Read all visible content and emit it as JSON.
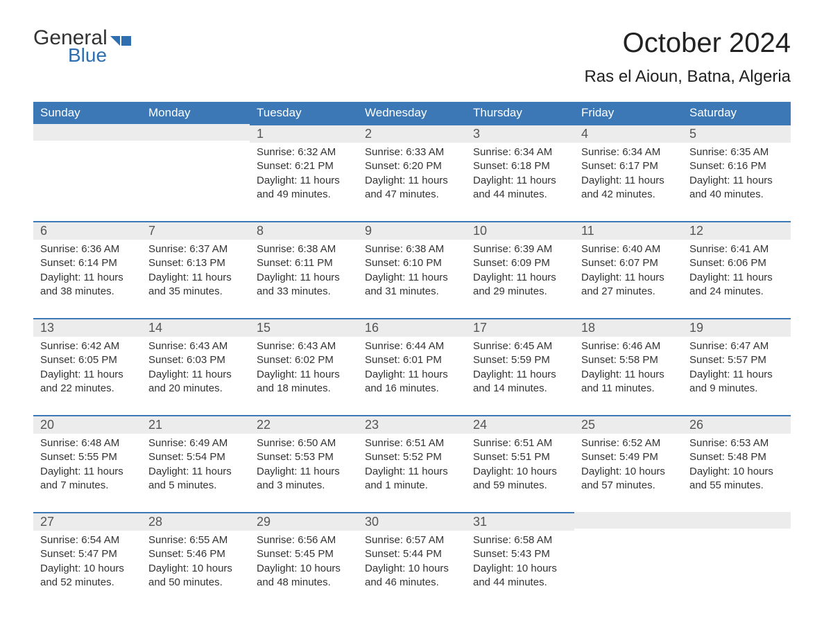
{
  "logo": {
    "word1": "General",
    "word2": "Blue",
    "color1": "#333333",
    "color2": "#2f6fb0"
  },
  "title": "October 2024",
  "location": "Ras el Aioun, Batna, Algeria",
  "colors": {
    "header_bg": "#3b78b5",
    "header_text": "#ffffff",
    "daynum_bg": "#ececec",
    "day_border_top": "#3b78b5",
    "body_text": "#333333",
    "page_bg": "#ffffff"
  },
  "typography": {
    "title_fontsize": 40,
    "location_fontsize": 24,
    "header_cell_fontsize": 17,
    "daynum_fontsize": 18,
    "body_fontsize": 15
  },
  "layout": {
    "columns": 7,
    "rows": 5,
    "first_day_column_index": 2
  },
  "day_headers": [
    "Sunday",
    "Monday",
    "Tuesday",
    "Wednesday",
    "Thursday",
    "Friday",
    "Saturday"
  ],
  "days": [
    {
      "n": 1,
      "sunrise": "6:32 AM",
      "sunset": "6:21 PM",
      "daylight": "11 hours and 49 minutes."
    },
    {
      "n": 2,
      "sunrise": "6:33 AM",
      "sunset": "6:20 PM",
      "daylight": "11 hours and 47 minutes."
    },
    {
      "n": 3,
      "sunrise": "6:34 AM",
      "sunset": "6:18 PM",
      "daylight": "11 hours and 44 minutes."
    },
    {
      "n": 4,
      "sunrise": "6:34 AM",
      "sunset": "6:17 PM",
      "daylight": "11 hours and 42 minutes."
    },
    {
      "n": 5,
      "sunrise": "6:35 AM",
      "sunset": "6:16 PM",
      "daylight": "11 hours and 40 minutes."
    },
    {
      "n": 6,
      "sunrise": "6:36 AM",
      "sunset": "6:14 PM",
      "daylight": "11 hours and 38 minutes."
    },
    {
      "n": 7,
      "sunrise": "6:37 AM",
      "sunset": "6:13 PM",
      "daylight": "11 hours and 35 minutes."
    },
    {
      "n": 8,
      "sunrise": "6:38 AM",
      "sunset": "6:11 PM",
      "daylight": "11 hours and 33 minutes."
    },
    {
      "n": 9,
      "sunrise": "6:38 AM",
      "sunset": "6:10 PM",
      "daylight": "11 hours and 31 minutes."
    },
    {
      "n": 10,
      "sunrise": "6:39 AM",
      "sunset": "6:09 PM",
      "daylight": "11 hours and 29 minutes."
    },
    {
      "n": 11,
      "sunrise": "6:40 AM",
      "sunset": "6:07 PM",
      "daylight": "11 hours and 27 minutes."
    },
    {
      "n": 12,
      "sunrise": "6:41 AM",
      "sunset": "6:06 PM",
      "daylight": "11 hours and 24 minutes."
    },
    {
      "n": 13,
      "sunrise": "6:42 AM",
      "sunset": "6:05 PM",
      "daylight": "11 hours and 22 minutes."
    },
    {
      "n": 14,
      "sunrise": "6:43 AM",
      "sunset": "6:03 PM",
      "daylight": "11 hours and 20 minutes."
    },
    {
      "n": 15,
      "sunrise": "6:43 AM",
      "sunset": "6:02 PM",
      "daylight": "11 hours and 18 minutes."
    },
    {
      "n": 16,
      "sunrise": "6:44 AM",
      "sunset": "6:01 PM",
      "daylight": "11 hours and 16 minutes."
    },
    {
      "n": 17,
      "sunrise": "6:45 AM",
      "sunset": "5:59 PM",
      "daylight": "11 hours and 14 minutes."
    },
    {
      "n": 18,
      "sunrise": "6:46 AM",
      "sunset": "5:58 PM",
      "daylight": "11 hours and 11 minutes."
    },
    {
      "n": 19,
      "sunrise": "6:47 AM",
      "sunset": "5:57 PM",
      "daylight": "11 hours and 9 minutes."
    },
    {
      "n": 20,
      "sunrise": "6:48 AM",
      "sunset": "5:55 PM",
      "daylight": "11 hours and 7 minutes."
    },
    {
      "n": 21,
      "sunrise": "6:49 AM",
      "sunset": "5:54 PM",
      "daylight": "11 hours and 5 minutes."
    },
    {
      "n": 22,
      "sunrise": "6:50 AM",
      "sunset": "5:53 PM",
      "daylight": "11 hours and 3 minutes."
    },
    {
      "n": 23,
      "sunrise": "6:51 AM",
      "sunset": "5:52 PM",
      "daylight": "11 hours and 1 minute."
    },
    {
      "n": 24,
      "sunrise": "6:51 AM",
      "sunset": "5:51 PM",
      "daylight": "10 hours and 59 minutes."
    },
    {
      "n": 25,
      "sunrise": "6:52 AM",
      "sunset": "5:49 PM",
      "daylight": "10 hours and 57 minutes."
    },
    {
      "n": 26,
      "sunrise": "6:53 AM",
      "sunset": "5:48 PM",
      "daylight": "10 hours and 55 minutes."
    },
    {
      "n": 27,
      "sunrise": "6:54 AM",
      "sunset": "5:47 PM",
      "daylight": "10 hours and 52 minutes."
    },
    {
      "n": 28,
      "sunrise": "6:55 AM",
      "sunset": "5:46 PM",
      "daylight": "10 hours and 50 minutes."
    },
    {
      "n": 29,
      "sunrise": "6:56 AM",
      "sunset": "5:45 PM",
      "daylight": "10 hours and 48 minutes."
    },
    {
      "n": 30,
      "sunrise": "6:57 AM",
      "sunset": "5:44 PM",
      "daylight": "10 hours and 46 minutes."
    },
    {
      "n": 31,
      "sunrise": "6:58 AM",
      "sunset": "5:43 PM",
      "daylight": "10 hours and 44 minutes."
    }
  ],
  "labels": {
    "sunrise": "Sunrise:",
    "sunset": "Sunset:",
    "daylight": "Daylight:"
  }
}
